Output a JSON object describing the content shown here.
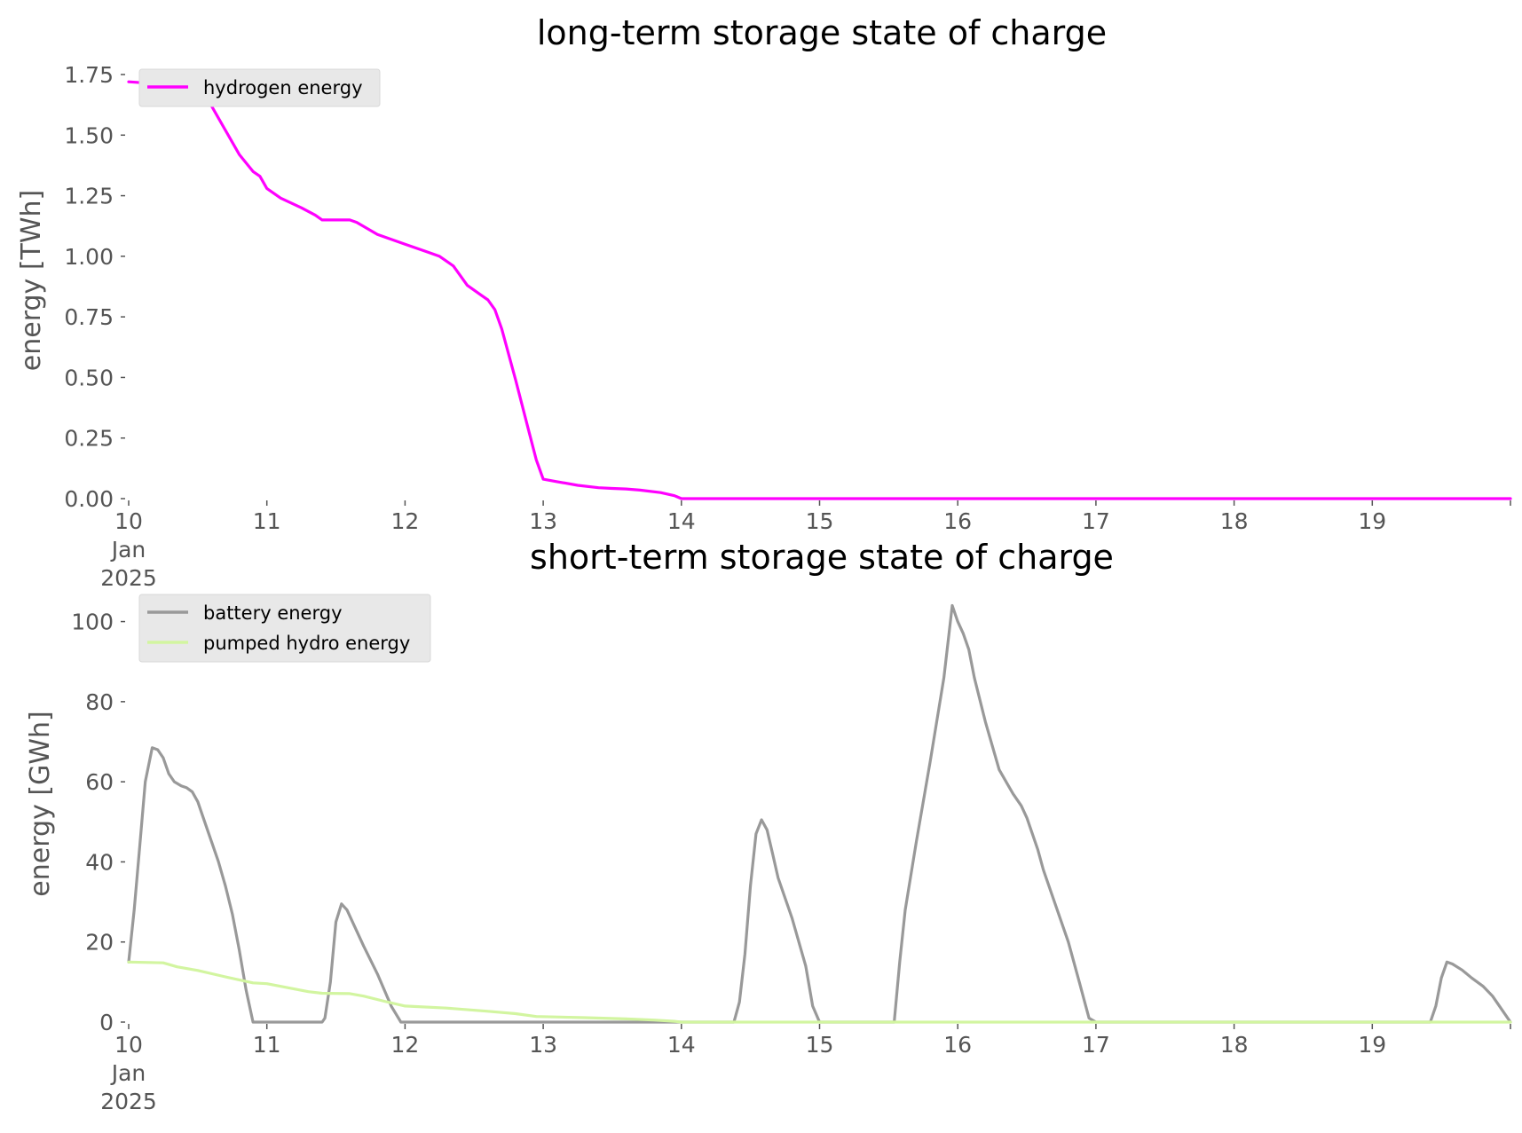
{
  "chart_data": [
    {
      "type": "line",
      "title": "long-term storage state of charge",
      "xlabel": "",
      "ylabel": "energy [TWh]",
      "ylim": [
        0,
        1.75
      ],
      "xlim": [
        "2025-01-10",
        "2025-01-20"
      ],
      "y_ticks": [
        "0.00",
        "0.25",
        "0.50",
        "0.75",
        "1.00",
        "1.25",
        "1.50",
        "1.75"
      ],
      "x_ticks": [
        {
          "day": 10,
          "lines": [
            "10",
            "Jan",
            "2025"
          ]
        },
        {
          "day": 11,
          "lines": [
            "11"
          ]
        },
        {
          "day": 12,
          "lines": [
            "12"
          ]
        },
        {
          "day": 13,
          "lines": [
            "13"
          ]
        },
        {
          "day": 14,
          "lines": [
            "14"
          ]
        },
        {
          "day": 15,
          "lines": [
            "15"
          ]
        },
        {
          "day": 16,
          "lines": [
            "16"
          ]
        },
        {
          "day": 17,
          "lines": [
            "17"
          ]
        },
        {
          "day": 18,
          "lines": [
            "18"
          ]
        },
        {
          "day": 19,
          "lines": [
            "19"
          ]
        }
      ],
      "grid": false,
      "legend_position": "top-left",
      "series": [
        {
          "name": "hydrogen energy",
          "color": "#ff00ff",
          "x_days": [
            10,
            10.25,
            10.35,
            10.5,
            10.6,
            10.7,
            10.8,
            10.9,
            10.95,
            11.0,
            11.1,
            11.25,
            11.35,
            11.4,
            11.6,
            11.65,
            11.8,
            12.0,
            12.15,
            12.25,
            12.35,
            12.45,
            12.55,
            12.6,
            12.65,
            12.7,
            12.8,
            12.9,
            12.95,
            13.0,
            13.1,
            13.25,
            13.4,
            13.5,
            13.6,
            13.7,
            13.85,
            13.95,
            14.0,
            20.0
          ],
          "y": [
            1.72,
            1.71,
            1.68,
            1.66,
            1.62,
            1.52,
            1.42,
            1.35,
            1.33,
            1.28,
            1.24,
            1.2,
            1.17,
            1.15,
            1.15,
            1.14,
            1.09,
            1.05,
            1.02,
            1.0,
            0.96,
            0.88,
            0.84,
            0.82,
            0.78,
            0.7,
            0.49,
            0.27,
            0.16,
            0.08,
            0.07,
            0.055,
            0.045,
            0.042,
            0.04,
            0.035,
            0.025,
            0.012,
            0.0,
            0.0
          ]
        }
      ]
    },
    {
      "type": "line",
      "title": "short-term storage state of charge",
      "xlabel": "",
      "ylabel": "energy [GWh]",
      "ylim": [
        0,
        105
      ],
      "xlim": [
        "2025-01-10",
        "2025-01-20"
      ],
      "y_ticks": [
        "0",
        "20",
        "40",
        "60",
        "80",
        "100"
      ],
      "x_ticks": [
        {
          "day": 10,
          "lines": [
            "10",
            "Jan",
            "2025"
          ]
        },
        {
          "day": 11,
          "lines": [
            "11"
          ]
        },
        {
          "day": 12,
          "lines": [
            "12"
          ]
        },
        {
          "day": 13,
          "lines": [
            "13"
          ]
        },
        {
          "day": 14,
          "lines": [
            "14"
          ]
        },
        {
          "day": 15,
          "lines": [
            "15"
          ]
        },
        {
          "day": 16,
          "lines": [
            "16"
          ]
        },
        {
          "day": 17,
          "lines": [
            "17"
          ]
        },
        {
          "day": 18,
          "lines": [
            "18"
          ]
        },
        {
          "day": 19,
          "lines": [
            "19"
          ]
        }
      ],
      "grid": false,
      "legend_position": "top-left",
      "series": [
        {
          "name": "battery energy",
          "color": "#999999",
          "x_days": [
            10,
            10.04,
            10.08,
            10.12,
            10.17,
            10.21,
            10.25,
            10.29,
            10.33,
            10.38,
            10.42,
            10.46,
            10.5,
            10.54,
            10.58,
            10.65,
            10.7,
            10.75,
            10.8,
            10.85,
            10.9,
            10.95,
            10.97,
            11.0,
            11.4,
            11.42,
            11.46,
            11.5,
            11.54,
            11.58,
            11.62,
            11.7,
            11.8,
            11.9,
            11.97,
            12.0,
            14.38,
            14.42,
            14.46,
            14.5,
            14.54,
            14.58,
            14.62,
            14.66,
            14.7,
            14.8,
            14.9,
            14.95,
            15.0,
            15.54,
            15.58,
            15.62,
            15.7,
            15.8,
            15.9,
            15.96,
            16.0,
            16.04,
            16.08,
            16.12,
            16.2,
            16.3,
            16.4,
            16.46,
            16.5,
            16.58,
            16.62,
            16.7,
            16.8,
            16.88,
            16.95,
            17.0,
            19.42,
            19.46,
            19.5,
            19.54,
            19.58,
            19.65,
            19.72,
            19.8,
            19.87,
            19.93,
            19.97,
            20.0
          ],
          "y": [
            15,
            28,
            44,
            60,
            68.5,
            68,
            66,
            62,
            60,
            59,
            58.5,
            57.5,
            55,
            51,
            47,
            40,
            34,
            27,
            18,
            8,
            0,
            0,
            0,
            0,
            0,
            1,
            10,
            25,
            29.5,
            28,
            25,
            19,
            12,
            4,
            0,
            0,
            0,
            5,
            17,
            34,
            47,
            50.5,
            48,
            42,
            36,
            26,
            14,
            4,
            0,
            0,
            15,
            28,
            45,
            65,
            86,
            104,
            100,
            97,
            93,
            86,
            75,
            63,
            57,
            54,
            51,
            43,
            38,
            30,
            20,
            10,
            1,
            0,
            0,
            4,
            11,
            15,
            14.5,
            13,
            11,
            9,
            6.5,
            3.5,
            1.5,
            0
          ]
        },
        {
          "name": "pumped hydro energy",
          "color": "#d2f5a0",
          "x_days": [
            10,
            10.25,
            10.35,
            10.5,
            10.7,
            10.9,
            11.0,
            11.15,
            11.3,
            11.4,
            11.6,
            11.7,
            11.85,
            12.0,
            12.3,
            12.6,
            12.8,
            12.95,
            13.3,
            13.6,
            13.8,
            13.95,
            14.0,
            20.0
          ],
          "y": [
            15,
            14.8,
            13.8,
            12.9,
            11.3,
            9.8,
            9.6,
            8.6,
            7.6,
            7.2,
            7.1,
            6.5,
            5.2,
            4.0,
            3.5,
            2.7,
            2.1,
            1.4,
            1.1,
            0.8,
            0.5,
            0.2,
            0.0,
            0.0
          ]
        }
      ]
    }
  ]
}
